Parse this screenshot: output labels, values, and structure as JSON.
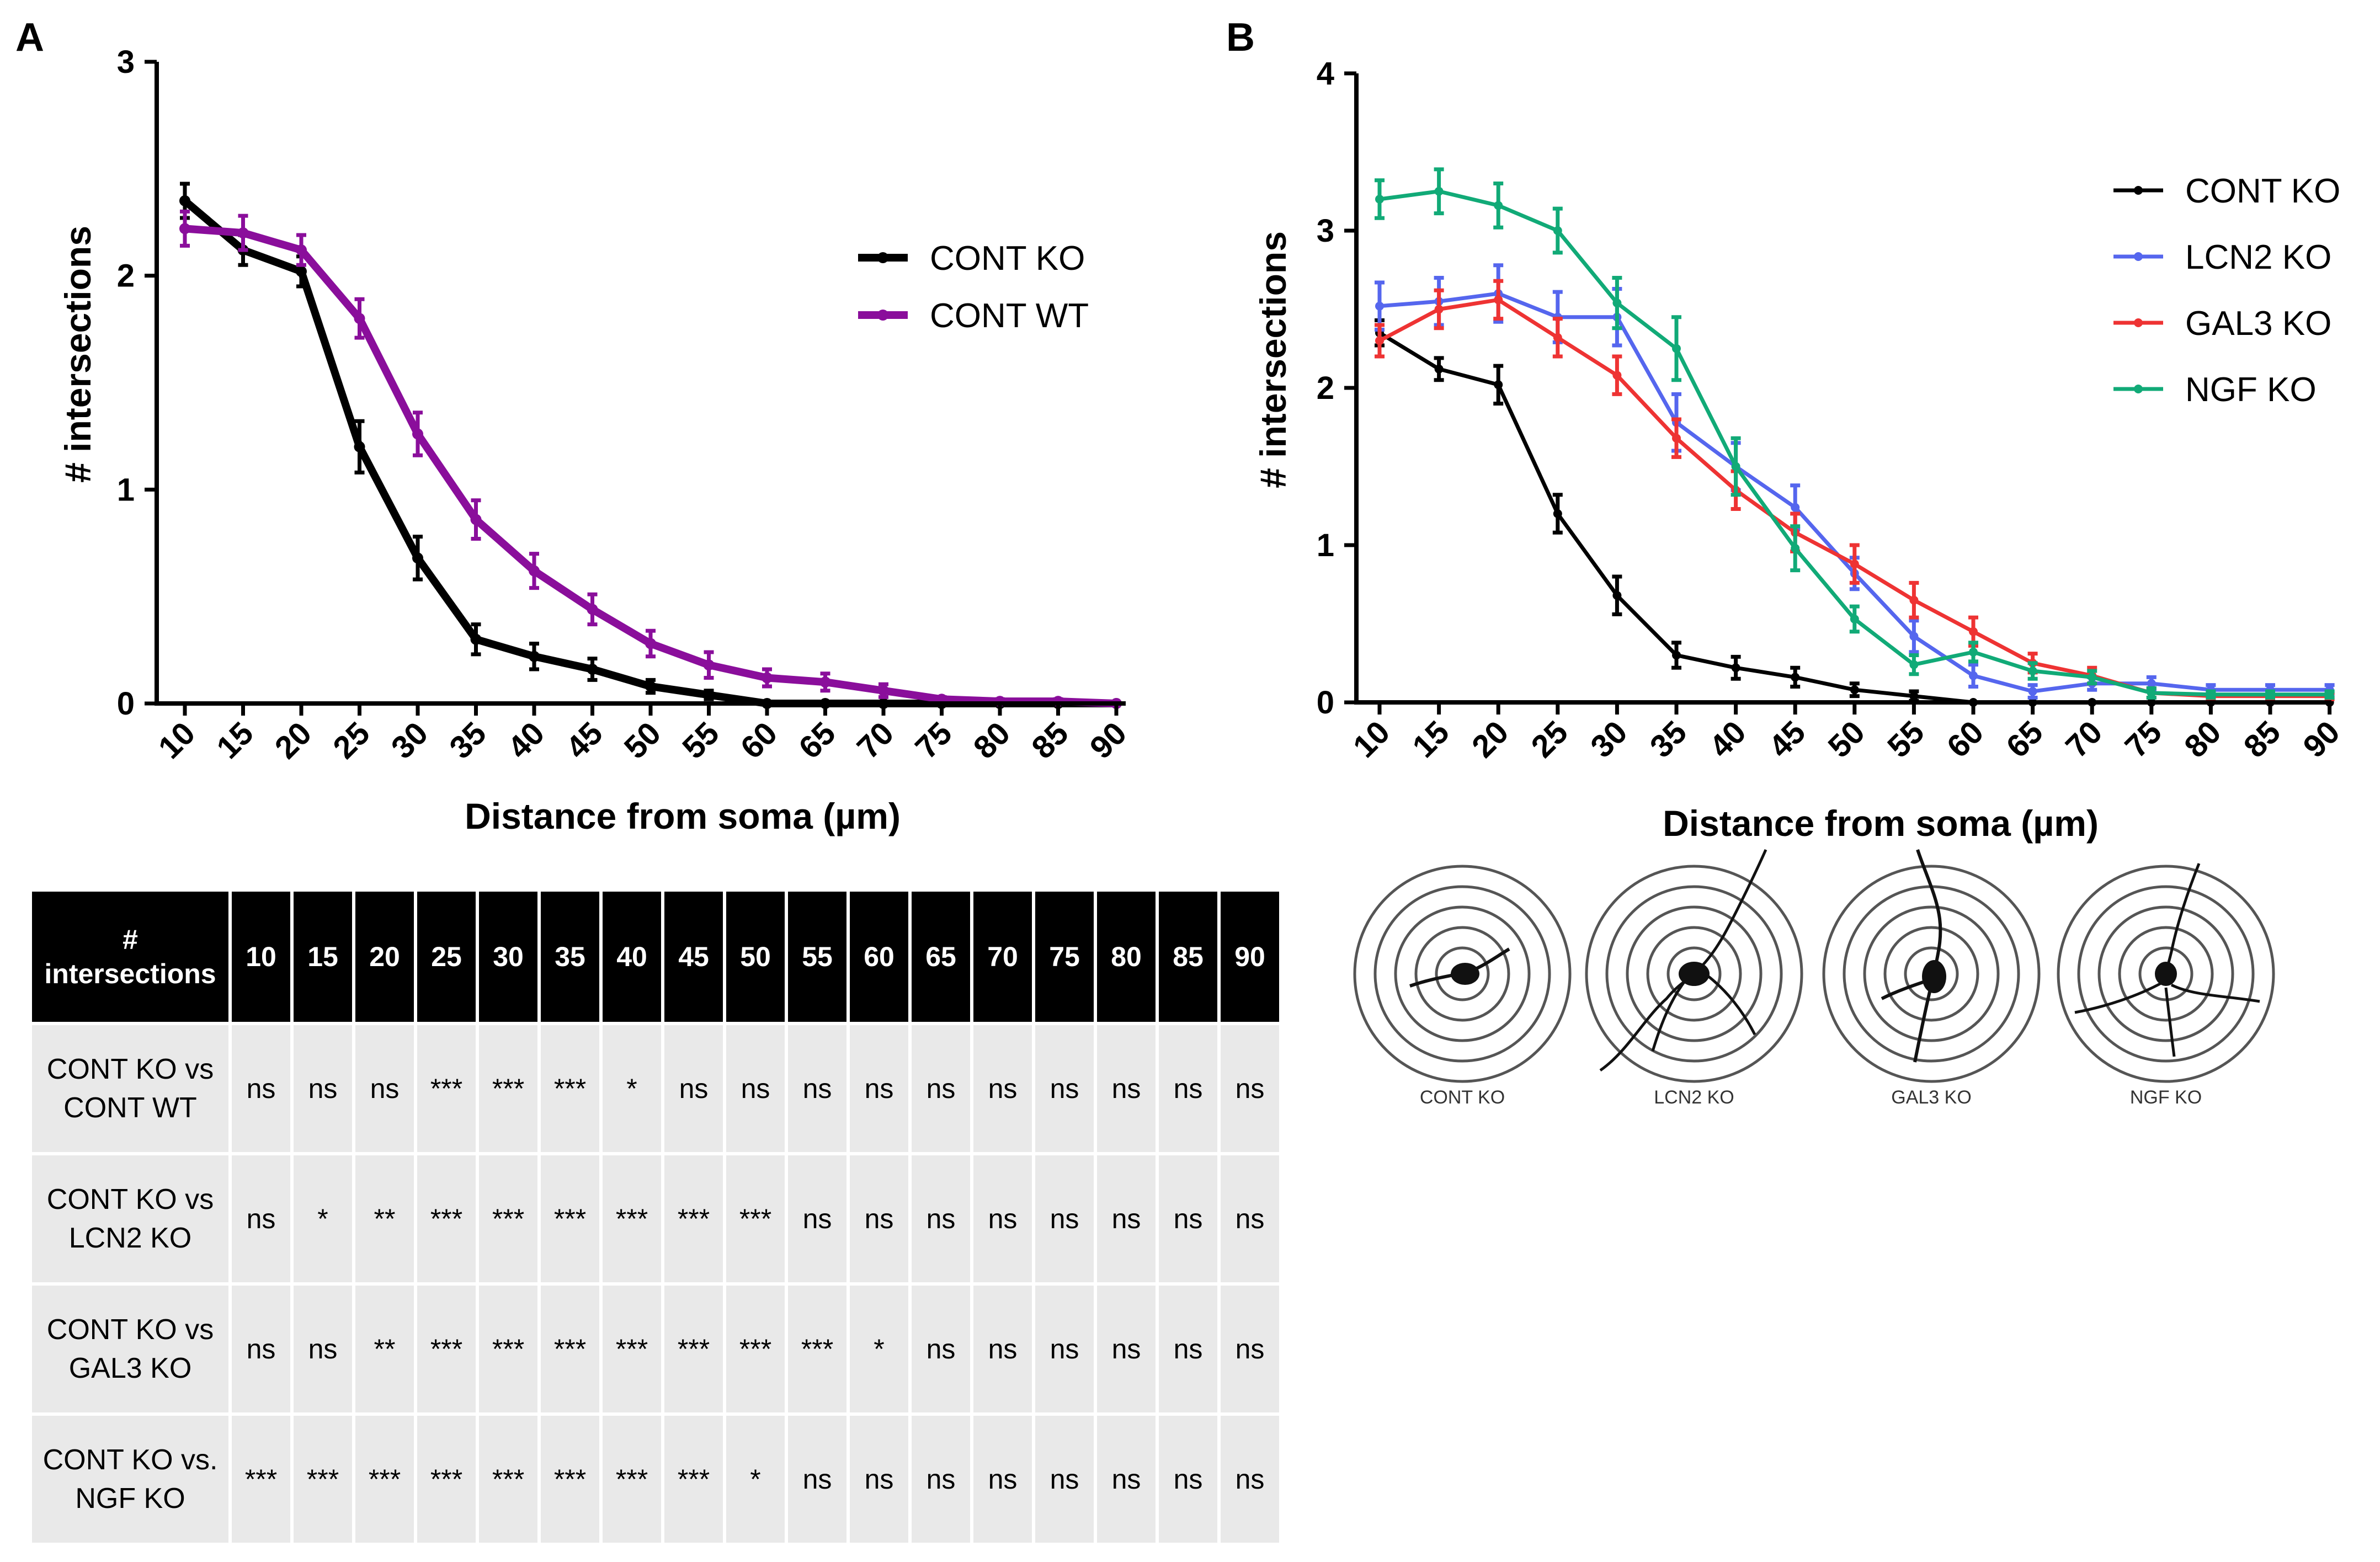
{
  "panel_labels": {
    "a": "A",
    "b": "B"
  },
  "chart_data": [
    {
      "type": "line",
      "panel": "A",
      "xlabel": "Distance from soma (µm)",
      "ylabel": "# intersections",
      "x": [
        10,
        15,
        20,
        25,
        30,
        35,
        40,
        45,
        50,
        55,
        60,
        65,
        70,
        75,
        80,
        85,
        90
      ],
      "ylim": [
        0,
        3
      ],
      "yticks": [
        0,
        1,
        2,
        3
      ],
      "legend_position": "top-right",
      "series": [
        {
          "name": "CONT KO",
          "color": "#000000",
          "values": [
            2.35,
            2.12,
            2.02,
            1.2,
            0.68,
            0.3,
            0.22,
            0.16,
            0.08,
            0.04,
            0,
            0,
            0,
            0,
            0,
            0,
            0
          ],
          "errors": [
            0.08,
            0.07,
            0.07,
            0.12,
            0.1,
            0.07,
            0.06,
            0.05,
            0.03,
            0.02,
            0,
            0,
            0,
            0,
            0,
            0,
            0
          ]
        },
        {
          "name": "CONT WT",
          "color": "#8a0e9b",
          "values": [
            2.22,
            2.2,
            2.12,
            1.8,
            1.26,
            0.86,
            0.62,
            0.44,
            0.28,
            0.18,
            0.12,
            0.1,
            0.06,
            0.02,
            0.01,
            0.01,
            0
          ],
          "errors": [
            0.08,
            0.08,
            0.07,
            0.09,
            0.1,
            0.09,
            0.08,
            0.07,
            0.06,
            0.06,
            0.04,
            0.04,
            0.03,
            0.01,
            0.01,
            0.01,
            0
          ]
        }
      ]
    },
    {
      "type": "line",
      "panel": "B",
      "xlabel": "Distance from soma (µm)",
      "ylabel": "# intersections",
      "x": [
        10,
        15,
        20,
        25,
        30,
        35,
        40,
        45,
        50,
        55,
        60,
        65,
        70,
        75,
        80,
        85,
        90
      ],
      "ylim": [
        0,
        4
      ],
      "yticks": [
        0,
        1,
        2,
        3,
        4
      ],
      "legend_position": "top-right",
      "series": [
        {
          "name": "CONT KO",
          "color": "#000000",
          "values": [
            2.35,
            2.12,
            2.02,
            1.2,
            0.68,
            0.3,
            0.22,
            0.16,
            0.08,
            0.04,
            0,
            0,
            0,
            0,
            0,
            0,
            0
          ],
          "errors": [
            0.08,
            0.07,
            0.12,
            0.12,
            0.12,
            0.08,
            0.07,
            0.06,
            0.04,
            0.03,
            0,
            0,
            0,
            0,
            0,
            0,
            0
          ]
        },
        {
          "name": "LCN2 KO",
          "color": "#5566ee",
          "values": [
            2.52,
            2.55,
            2.6,
            2.45,
            2.45,
            1.78,
            1.5,
            1.24,
            0.82,
            0.42,
            0.17,
            0.07,
            0.12,
            0.12,
            0.08,
            0.08,
            0.08
          ],
          "errors": [
            0.15,
            0.15,
            0.18,
            0.16,
            0.18,
            0.18,
            0.15,
            0.14,
            0.1,
            0.1,
            0.07,
            0.04,
            0.04,
            0.04,
            0.03,
            0.03,
            0.03
          ]
        },
        {
          "name": "GAL3 KO",
          "color": "#ee3333",
          "values": [
            2.3,
            2.5,
            2.56,
            2.32,
            2.08,
            1.68,
            1.35,
            1.08,
            0.88,
            0.65,
            0.45,
            0.25,
            0.17,
            0.06,
            0.04,
            0.04,
            0.04
          ],
          "errors": [
            0.1,
            0.12,
            0.12,
            0.12,
            0.12,
            0.12,
            0.12,
            0.12,
            0.12,
            0.11,
            0.09,
            0.06,
            0.05,
            0.03,
            0.02,
            0.02,
            0.02
          ]
        },
        {
          "name": "NGF KO",
          "color": "#11aa77",
          "values": [
            3.2,
            3.25,
            3.16,
            3.0,
            2.54,
            2.25,
            1.5,
            0.98,
            0.53,
            0.24,
            0.32,
            0.2,
            0.16,
            0.06,
            0.05,
            0.05,
            0.05
          ],
          "errors": [
            0.12,
            0.14,
            0.14,
            0.14,
            0.16,
            0.2,
            0.18,
            0.14,
            0.08,
            0.06,
            0.06,
            0.05,
            0.04,
            0.03,
            0.02,
            0.02,
            0.02
          ]
        }
      ]
    }
  ],
  "table": {
    "header_label_line1": "#",
    "header_label_line2": "intersections",
    "columns": [
      "10",
      "15",
      "20",
      "25",
      "30",
      "35",
      "40",
      "45",
      "50",
      "55",
      "60",
      "65",
      "70",
      "75",
      "80",
      "85",
      "90"
    ],
    "rows": [
      {
        "label_line1": "CONT KO vs",
        "label_line2": "CONT WT",
        "cells": [
          "ns",
          "ns",
          "ns",
          "***",
          "***",
          "***",
          "*",
          "ns",
          "ns",
          "ns",
          "ns",
          "ns",
          "ns",
          "ns",
          "ns",
          "ns",
          "ns"
        ]
      },
      {
        "label_line1": "CONT KO vs",
        "label_line2": "LCN2 KO",
        "cells": [
          "ns",
          "*",
          "**",
          "***",
          "***",
          "***",
          "***",
          "***",
          "***",
          "ns",
          "ns",
          "ns",
          "ns",
          "ns",
          "ns",
          "ns",
          "ns"
        ]
      },
      {
        "label_line1": "CONT KO vs",
        "label_line2": "GAL3 KO",
        "cells": [
          "ns",
          "ns",
          "**",
          "***",
          "***",
          "***",
          "***",
          "***",
          "***",
          "***",
          "*",
          "ns",
          "ns",
          "ns",
          "ns",
          "ns",
          "ns"
        ]
      },
      {
        "label_line1": "CONT KO vs.",
        "label_line2": "NGF KO",
        "cells": [
          "***",
          "***",
          "***",
          "***",
          "***",
          "***",
          "***",
          "***",
          "*",
          "ns",
          "ns",
          "ns",
          "ns",
          "ns",
          "ns",
          "ns",
          "ns"
        ]
      }
    ]
  },
  "sholl": [
    {
      "label": "CONT KO"
    },
    {
      "label": "LCN2 KO"
    },
    {
      "label": "GAL3 KO"
    },
    {
      "label": "NGF KO"
    }
  ]
}
